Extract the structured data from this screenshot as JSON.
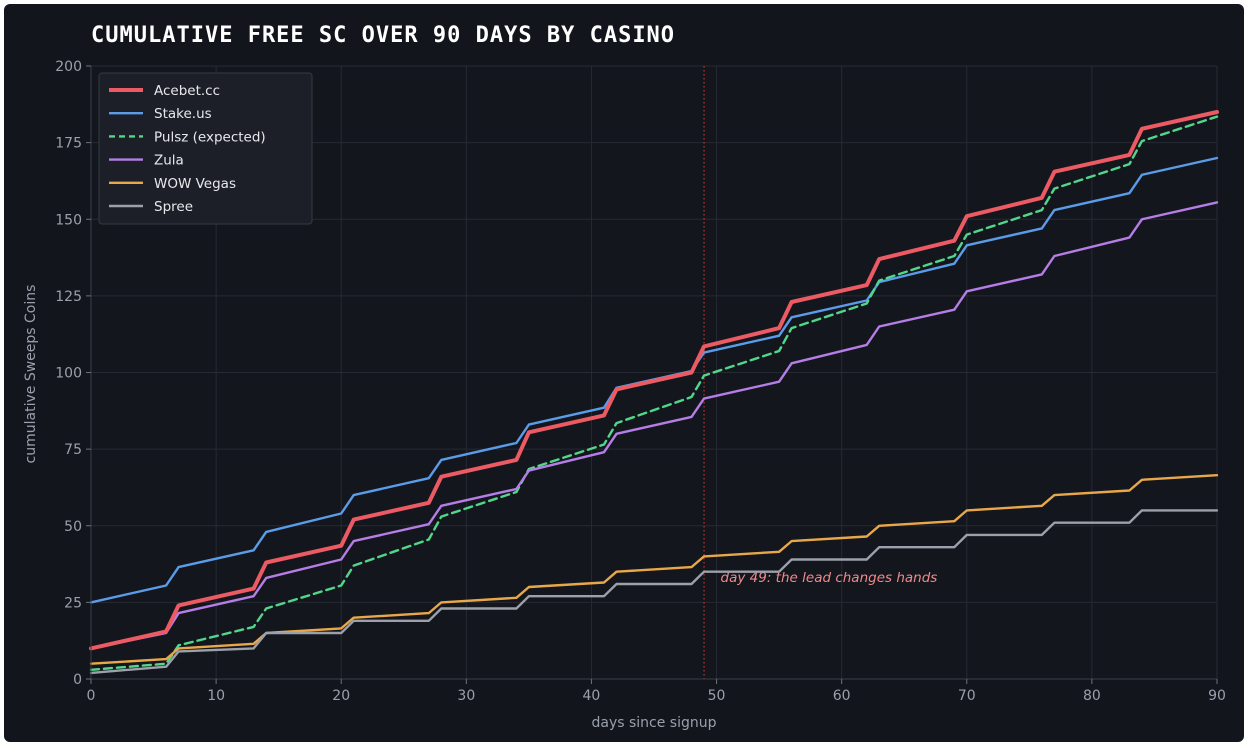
{
  "chart_data": {
    "type": "line",
    "title": "CUMULATIVE FREE SC OVER 90 DAYS BY CASINO",
    "xlabel": "days since signup",
    "ylabel": "cumulative Sweeps Coins",
    "xlim": [
      0,
      90
    ],
    "ylim": [
      0,
      200
    ],
    "xticks": [
      0,
      10,
      20,
      30,
      40,
      50,
      60,
      70,
      80,
      90
    ],
    "yticks": [
      0,
      25,
      50,
      75,
      100,
      125,
      150,
      175,
      200
    ],
    "grid": true,
    "legend_position": "top-left",
    "background": "#13151c",
    "series": [
      {
        "name": "Acebet.cc",
        "color": "#ec5a63",
        "style": "solid",
        "width": "thick",
        "points": [
          [
            0,
            10
          ],
          [
            6,
            15.5
          ],
          [
            7,
            24
          ],
          [
            13,
            29.5
          ],
          [
            14,
            38
          ],
          [
            20,
            43.5
          ],
          [
            21,
            52
          ],
          [
            27,
            57.5
          ],
          [
            28,
            66
          ],
          [
            34,
            71.5
          ],
          [
            35,
            80.5
          ],
          [
            41,
            86
          ],
          [
            42,
            94.5
          ],
          [
            48,
            100
          ],
          [
            49,
            108.5
          ],
          [
            55,
            114.5
          ],
          [
            56,
            123
          ],
          [
            62,
            128.5
          ],
          [
            63,
            137
          ],
          [
            69,
            143
          ],
          [
            70,
            151
          ],
          [
            76,
            157
          ],
          [
            77,
            165.5
          ],
          [
            83,
            171
          ],
          [
            84,
            179.5
          ],
          [
            90,
            185
          ]
        ]
      },
      {
        "name": "Stake.us",
        "color": "#5a9ce8",
        "style": "solid",
        "width": "normal",
        "points": [
          [
            0,
            25
          ],
          [
            6,
            30.5
          ],
          [
            7,
            36.5
          ],
          [
            13,
            42
          ],
          [
            14,
            48
          ],
          [
            20,
            54
          ],
          [
            21,
            60
          ],
          [
            27,
            65.5
          ],
          [
            28,
            71.5
          ],
          [
            34,
            77
          ],
          [
            35,
            83
          ],
          [
            41,
            88.5
          ],
          [
            42,
            95
          ],
          [
            48,
            100.5
          ],
          [
            49,
            106.5
          ],
          [
            55,
            112
          ],
          [
            56,
            118
          ],
          [
            62,
            123.5
          ],
          [
            63,
            129.5
          ],
          [
            69,
            135.5
          ],
          [
            70,
            141.5
          ],
          [
            76,
            147
          ],
          [
            77,
            153
          ],
          [
            83,
            158.5
          ],
          [
            84,
            164.5
          ],
          [
            90,
            170
          ]
        ]
      },
      {
        "name": "Pulsz (expected)",
        "color": "#52d68a",
        "style": "dashed",
        "width": "normal",
        "points": [
          [
            0,
            3
          ],
          [
            6,
            5
          ],
          [
            7,
            11
          ],
          [
            13,
            17
          ],
          [
            14,
            23
          ],
          [
            20,
            30.5
          ],
          [
            21,
            37
          ],
          [
            27,
            45.5
          ],
          [
            28,
            53
          ],
          [
            34,
            61
          ],
          [
            35,
            68.5
          ],
          [
            41,
            76.5
          ],
          [
            42,
            83.5
          ],
          [
            48,
            92
          ],
          [
            49,
            99
          ],
          [
            55,
            107
          ],
          [
            56,
            114.5
          ],
          [
            62,
            122.5
          ],
          [
            63,
            130
          ],
          [
            69,
            138
          ],
          [
            70,
            145
          ],
          [
            76,
            153
          ],
          [
            77,
            160
          ],
          [
            83,
            168
          ],
          [
            84,
            175.5
          ],
          [
            90,
            183.5
          ]
        ]
      },
      {
        "name": "Zula",
        "color": "#b57de6",
        "style": "solid",
        "width": "normal",
        "points": [
          [
            0,
            10
          ],
          [
            6,
            15
          ],
          [
            7,
            21.5
          ],
          [
            13,
            27
          ],
          [
            14,
            33
          ],
          [
            20,
            39
          ],
          [
            21,
            45
          ],
          [
            27,
            50.5
          ],
          [
            28,
            56.5
          ],
          [
            34,
            62
          ],
          [
            35,
            68
          ],
          [
            41,
            74
          ],
          [
            42,
            80
          ],
          [
            48,
            85.5
          ],
          [
            49,
            91.5
          ],
          [
            55,
            97
          ],
          [
            56,
            103
          ],
          [
            62,
            109
          ],
          [
            63,
            115
          ],
          [
            69,
            120.5
          ],
          [
            70,
            126.5
          ],
          [
            76,
            132
          ],
          [
            77,
            138
          ],
          [
            83,
            144
          ],
          [
            84,
            150
          ],
          [
            90,
            155.5
          ]
        ]
      },
      {
        "name": "WOW Vegas",
        "color": "#e8a84a",
        "style": "solid",
        "width": "normal",
        "points": [
          [
            0,
            5
          ],
          [
            6,
            6.5
          ],
          [
            7,
            10
          ],
          [
            13,
            11.5
          ],
          [
            14,
            15
          ],
          [
            20,
            16.5
          ],
          [
            21,
            20
          ],
          [
            27,
            21.5
          ],
          [
            28,
            25
          ],
          [
            34,
            26.5
          ],
          [
            35,
            30
          ],
          [
            41,
            31.5
          ],
          [
            42,
            35
          ],
          [
            48,
            36.5
          ],
          [
            49,
            40
          ],
          [
            55,
            41.5
          ],
          [
            56,
            45
          ],
          [
            62,
            46.5
          ],
          [
            63,
            50
          ],
          [
            69,
            51.5
          ],
          [
            70,
            55
          ],
          [
            76,
            56.5
          ],
          [
            77,
            60
          ],
          [
            83,
            61.5
          ],
          [
            84,
            65
          ],
          [
            90,
            66.5
          ]
        ]
      },
      {
        "name": "Spree",
        "color": "#9ba0ab",
        "style": "solid",
        "width": "normal",
        "points": [
          [
            0,
            2
          ],
          [
            6,
            4
          ],
          [
            7,
            9
          ],
          [
            13,
            10
          ],
          [
            14,
            15
          ],
          [
            20,
            15
          ],
          [
            21,
            19
          ],
          [
            27,
            19
          ],
          [
            28,
            23
          ],
          [
            34,
            23
          ],
          [
            35,
            27
          ],
          [
            41,
            27
          ],
          [
            42,
            31
          ],
          [
            48,
            31
          ],
          [
            49,
            35
          ],
          [
            55,
            35
          ],
          [
            56,
            39
          ],
          [
            62,
            39
          ],
          [
            63,
            43
          ],
          [
            69,
            43
          ],
          [
            70,
            47
          ],
          [
            76,
            47
          ],
          [
            77,
            51
          ],
          [
            83,
            51
          ],
          [
            84,
            55
          ],
          [
            90,
            55
          ]
        ]
      }
    ],
    "annotations": [
      {
        "type": "vline",
        "x": 49,
        "color": "#b33a3a"
      },
      {
        "type": "text",
        "x": 50,
        "y": 31,
        "text": "day 49: the lead changes hands",
        "color": "#f08a8a"
      }
    ]
  }
}
